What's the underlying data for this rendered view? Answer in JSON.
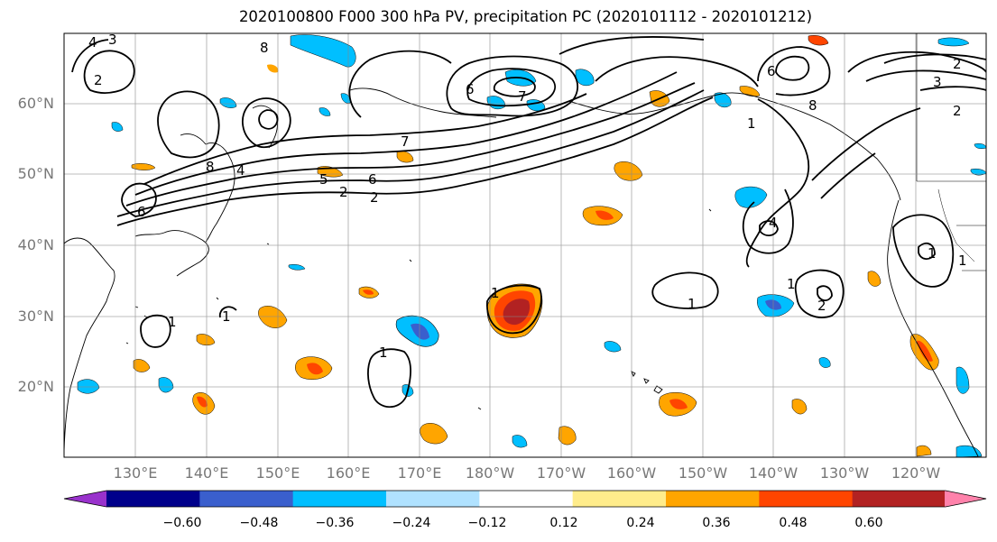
{
  "title": "2020100800 F000 300 hPa PV, precipitation PC (2020101112 - 2020101212)",
  "lat_labels": [
    "60°N",
    "50°N",
    "40°N",
    "30°N",
    "20°N"
  ],
  "lon_labels": [
    "130°E",
    "140°E",
    "150°E",
    "160°E",
    "170°E",
    "180°W",
    "170°W",
    "160°W",
    "150°W",
    "140°W",
    "130°W",
    "120°W"
  ],
  "colorbar": {
    "ticks": [
      "−0.60",
      "−0.48",
      "−0.36",
      "−0.24",
      "−0.12",
      "0.12",
      "0.24",
      "0.36",
      "0.48",
      "0.60"
    ],
    "colors": [
      "#9932cc",
      "#00008b",
      "#3a5fcd",
      "#00bfff",
      "#b0e2ff",
      "#ffffff",
      "#ffec8b",
      "#ffa500",
      "#ff4500",
      "#b22222",
      "#ff82ab"
    ]
  },
  "contour_labels": [
    "3",
    "2",
    "4",
    "8",
    "2",
    "6",
    "7",
    "6",
    "1",
    "6",
    "2",
    "3",
    "2",
    "8",
    "4",
    "5",
    "6",
    "7",
    "8",
    "4",
    "2",
    "1",
    "1",
    "1",
    "1",
    "1",
    "2",
    "1",
    "1",
    "1"
  ]
}
